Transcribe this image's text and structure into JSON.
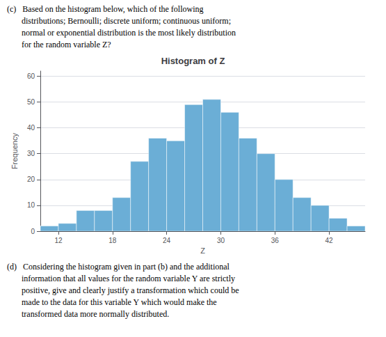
{
  "chart_data": {
    "type": "histogram",
    "title": "Histogram of Z",
    "xlabel": "Z",
    "ylabel": "Frequency",
    "bins": [
      10,
      12,
      14,
      16,
      18,
      20,
      22,
      24,
      26,
      28,
      30,
      32,
      34,
      36,
      38,
      40,
      42,
      44,
      46
    ],
    "values": [
      2,
      3,
      8,
      8,
      13,
      27,
      36,
      35,
      49,
      51,
      46,
      36,
      30,
      20,
      13,
      10,
      5,
      2
    ],
    "color": "#6baed6",
    "xlim": [
      10,
      46
    ],
    "xticks": [
      12,
      18,
      24,
      30,
      36,
      42
    ],
    "ylim": [
      0,
      62
    ],
    "yticks": [
      0,
      10,
      20,
      30,
      40,
      50,
      60
    ],
    "grid": true,
    "annotations": [
      "(c)   Based on the histogram below, which of the following\n       distributions; Bernoulli; discrete uniform; continuous uniform;\n       normal or exponential distribution is the most likely distribution\n       for the random variable Z?",
      "(d)   Considering the histogram given in part (b) and the additional\n       information that all values for the random variable Y are strictly\n       positive, give and clearly justify a transformation which could be\n       made to the data for this variable Y which would make the\n       transformed data more normally distributed."
    ]
  }
}
